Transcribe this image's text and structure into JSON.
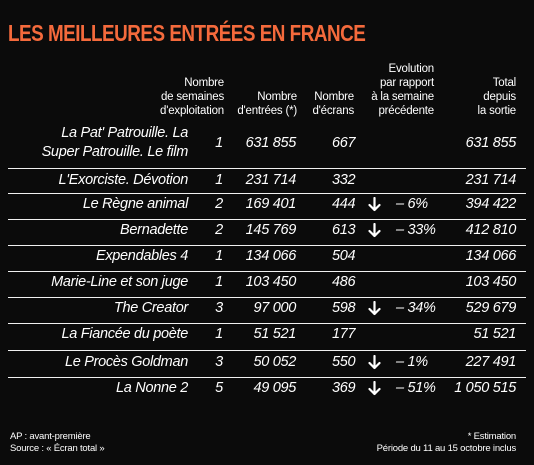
{
  "title": "LES MEILLEURES ENTRÉES EN FRANCE",
  "headers": {
    "weeks": "Nombre\nde semaines\nd'exploitation",
    "entries": "Nombre\nd'entrées (*)",
    "screens": "Nombre\nd'écrans",
    "evolution": "Evolution\npar rapport\nà la semaine\nprécédente",
    "total": "Total\ndepuis\nla sortie"
  },
  "rows": [
    {
      "film": "La Pat' Patrouille. La\nSuper Patrouille. Le film",
      "weeks": "1",
      "entries": "631 855",
      "screens": "667",
      "evo_arrow": "",
      "evolution": "",
      "total": "631 855"
    },
    {
      "film": "L'Exorciste. Dévotion",
      "weeks": "1",
      "entries": "231 714",
      "screens": "332",
      "evo_arrow": "",
      "evolution": "",
      "total": "231 714"
    },
    {
      "film": "Le Règne animal",
      "weeks": "2",
      "entries": "169 401",
      "screens": "444",
      "evo_arrow": "down-arrow",
      "evolution": "– 6%",
      "total": "394 422"
    },
    {
      "film": "Bernadette",
      "weeks": "2",
      "entries": "145 769",
      "screens": "613",
      "evo_arrow": "down-arrow",
      "evolution": "– 33%",
      "total": "412 810"
    },
    {
      "film": "Expendables 4",
      "weeks": "1",
      "entries": "134 066",
      "screens": "504",
      "evo_arrow": "",
      "evolution": "",
      "total": "134 066"
    },
    {
      "film": "Marie-Line et son juge",
      "weeks": "1",
      "entries": "103 450",
      "screens": "486",
      "evo_arrow": "",
      "evolution": "",
      "total": "103 450"
    },
    {
      "film": "The Creator",
      "weeks": "3",
      "entries": "97 000",
      "screens": "598",
      "evo_arrow": "down-arrow",
      "evolution": "– 34%",
      "total": "529 679"
    },
    {
      "film": "La Fiancée du poète",
      "weeks": "1",
      "entries": "51 521",
      "screens": "177",
      "evo_arrow": "",
      "evolution": "",
      "total": "51 521"
    },
    {
      "film": "Le Procès Goldman",
      "weeks": "3",
      "entries": "50 052",
      "screens": "550",
      "evo_arrow": "down-arrow",
      "evolution": "– 1%",
      "total": "227 491"
    },
    {
      "film": "La Nonne 2",
      "weeks": "5",
      "entries": "49 095",
      "screens": "369",
      "evo_arrow": "down-arrow",
      "evolution": "– 51%",
      "total": "1 050 515"
    }
  ],
  "footer": {
    "left_line1": "AP : avant-première",
    "left_line2": "Source : « Écran total »",
    "right_line1": "* Estimation",
    "right_line2": "Période du 11 au 15 octobre inclus"
  },
  "colors": {
    "title": "#f46a3c",
    "background": "#0b0b0b",
    "text": "#ffffff"
  }
}
